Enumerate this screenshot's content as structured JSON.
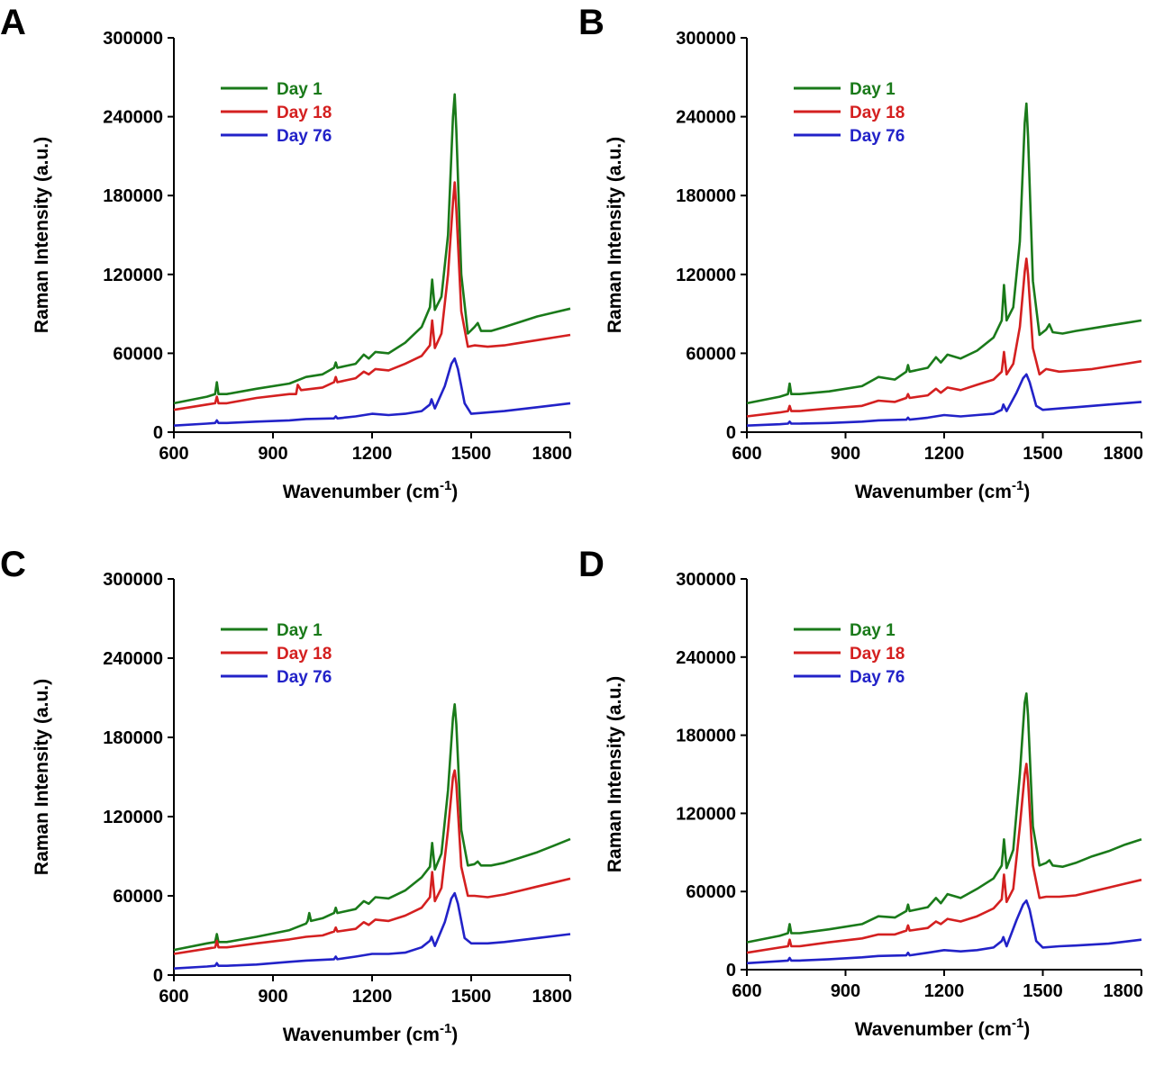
{
  "chart_data": [
    {
      "type": "line",
      "panel": "A",
      "xlabel": "Wavenumber (cm",
      "xlabel_sup": "-1",
      "ylabel": "Raman Intensity (a.u.)",
      "xlim": [
        600,
        1800
      ],
      "ylim": [
        0,
        300000
      ],
      "xticks": [
        "600",
        "900",
        "1200",
        "1500",
        "1800"
      ],
      "yticks": [
        "0",
        "60000",
        "120000",
        "180000",
        "240000",
        "300000"
      ],
      "legend_position": "top-left",
      "grid": false,
      "series": [
        {
          "name": "Day 1",
          "color": "#1a7a1a",
          "x": [
            600,
            700,
            725,
            730,
            735,
            760,
            850,
            950,
            1000,
            1050,
            1085,
            1090,
            1095,
            1150,
            1175,
            1190,
            1210,
            1250,
            1300,
            1350,
            1375,
            1382,
            1390,
            1410,
            1430,
            1445,
            1450,
            1455,
            1470,
            1490,
            1510,
            1520,
            1530,
            1560,
            1600,
            1650,
            1700,
            1750,
            1800
          ],
          "y": [
            22000,
            27000,
            29000,
            38000,
            29000,
            29000,
            33000,
            37000,
            42000,
            44000,
            49000,
            53000,
            49000,
            52000,
            59000,
            56000,
            61000,
            60000,
            68000,
            80000,
            95000,
            116000,
            93000,
            103000,
            150000,
            240000,
            257000,
            230000,
            120000,
            75000,
            80000,
            83000,
            77000,
            77000,
            80000,
            84000,
            88000,
            91000,
            94000
          ]
        },
        {
          "name": "Day 18",
          "color": "#d42020",
          "x": [
            600,
            700,
            725,
            730,
            735,
            760,
            850,
            950,
            970,
            975,
            985,
            1050,
            1085,
            1090,
            1095,
            1150,
            1175,
            1190,
            1210,
            1250,
            1300,
            1350,
            1375,
            1382,
            1390,
            1410,
            1430,
            1445,
            1450,
            1455,
            1470,
            1490,
            1510,
            1550,
            1600,
            1650,
            1700,
            1750,
            1800
          ],
          "y": [
            17000,
            21000,
            22000,
            27000,
            22000,
            22000,
            26000,
            29000,
            29000,
            36000,
            32000,
            34000,
            38000,
            42000,
            38000,
            41000,
            46000,
            44000,
            48000,
            47000,
            52000,
            58000,
            66000,
            85000,
            64000,
            75000,
            120000,
            175000,
            190000,
            170000,
            92000,
            65000,
            66000,
            65000,
            66000,
            68000,
            70000,
            72000,
            74000
          ]
        },
        {
          "name": "Day 76",
          "color": "#2222c8",
          "x": [
            600,
            700,
            725,
            730,
            735,
            760,
            850,
            950,
            1000,
            1085,
            1090,
            1095,
            1150,
            1200,
            1250,
            1300,
            1350,
            1375,
            1380,
            1390,
            1420,
            1440,
            1450,
            1460,
            1480,
            1500,
            1550,
            1600,
            1700,
            1800
          ],
          "y": [
            5000,
            6500,
            7000,
            9000,
            7000,
            7000,
            8000,
            9000,
            10000,
            10500,
            12000,
            10500,
            12000,
            14000,
            13000,
            14000,
            16000,
            21000,
            25000,
            18000,
            35000,
            52000,
            56000,
            48000,
            22000,
            14000,
            15000,
            16000,
            19000,
            22000
          ]
        }
      ]
    },
    {
      "type": "line",
      "panel": "B",
      "xlabel": "Wavenumber (cm",
      "xlabel_sup": "-1",
      "ylabel": "Raman Intensity (a.u.)",
      "xlim": [
        600,
        1800
      ],
      "ylim": [
        0,
        300000
      ],
      "xticks": [
        "600",
        "900",
        "1200",
        "1500",
        "1800"
      ],
      "yticks": [
        "0",
        "60000",
        "120000",
        "180000",
        "240000",
        "300000"
      ],
      "legend_position": "top-left",
      "grid": false,
      "series": [
        {
          "name": "Day 1",
          "color": "#1a7a1a",
          "x": [
            600,
            700,
            725,
            730,
            735,
            760,
            850,
            950,
            1000,
            1050,
            1085,
            1090,
            1095,
            1150,
            1175,
            1190,
            1210,
            1250,
            1300,
            1350,
            1375,
            1382,
            1390,
            1410,
            1430,
            1445,
            1450,
            1455,
            1470,
            1490,
            1510,
            1520,
            1530,
            1560,
            1600,
            1650,
            1700,
            1750,
            1800
          ],
          "y": [
            22000,
            27000,
            29000,
            37000,
            29000,
            29000,
            31000,
            35000,
            42000,
            40000,
            46000,
            51000,
            46000,
            49000,
            57000,
            53000,
            59000,
            56000,
            62000,
            72000,
            85000,
            112000,
            85000,
            95000,
            145000,
            235000,
            250000,
            225000,
            115000,
            74000,
            78000,
            82000,
            76000,
            75000,
            77000,
            79000,
            81000,
            83000,
            85000
          ]
        },
        {
          "name": "Day 18",
          "color": "#d42020",
          "x": [
            600,
            700,
            725,
            730,
            735,
            760,
            850,
            950,
            1000,
            1050,
            1085,
            1090,
            1095,
            1150,
            1175,
            1190,
            1210,
            1250,
            1300,
            1350,
            1375,
            1382,
            1390,
            1410,
            1430,
            1445,
            1450,
            1455,
            1470,
            1490,
            1510,
            1550,
            1600,
            1650,
            1700,
            1750,
            1800
          ],
          "y": [
            12000,
            15000,
            16000,
            20000,
            16000,
            16000,
            18000,
            20000,
            24000,
            23000,
            26000,
            29000,
            26000,
            28000,
            33000,
            30000,
            34000,
            32000,
            36000,
            40000,
            46000,
            61000,
            44000,
            52000,
            80000,
            122000,
            132000,
            120000,
            64000,
            44000,
            48000,
            46000,
            47000,
            48000,
            50000,
            52000,
            54000
          ]
        },
        {
          "name": "Day 76",
          "color": "#2222c8",
          "x": [
            600,
            700,
            725,
            730,
            735,
            760,
            850,
            950,
            1000,
            1085,
            1090,
            1095,
            1150,
            1200,
            1250,
            1300,
            1350,
            1375,
            1380,
            1390,
            1420,
            1440,
            1450,
            1460,
            1480,
            1500,
            1550,
            1600,
            1700,
            1800
          ],
          "y": [
            5000,
            6000,
            6500,
            8000,
            6500,
            6500,
            7000,
            8000,
            9000,
            9500,
            11000,
            9500,
            11000,
            13000,
            12000,
            13000,
            14000,
            17000,
            21000,
            16000,
            30000,
            41000,
            44000,
            38000,
            20000,
            17000,
            18000,
            19000,
            21000,
            23000
          ]
        }
      ]
    },
    {
      "type": "line",
      "panel": "C",
      "xlabel": "Wavenumber (cm",
      "xlabel_sup": "-1",
      "ylabel": "Raman Intensity (a.u.)",
      "xlim": [
        600,
        1800
      ],
      "ylim": [
        0,
        300000
      ],
      "xticks": [
        "600",
        "900",
        "1200",
        "1500",
        "1800"
      ],
      "yticks": [
        "0",
        "60000",
        "120000",
        "180000",
        "240000",
        "300000"
      ],
      "legend_position": "top-left",
      "grid": false,
      "series": [
        {
          "name": "Day 1",
          "color": "#1a7a1a",
          "x": [
            600,
            700,
            725,
            730,
            735,
            760,
            850,
            950,
            1000,
            1005,
            1010,
            1015,
            1050,
            1085,
            1090,
            1095,
            1150,
            1175,
            1190,
            1210,
            1250,
            1300,
            1350,
            1375,
            1382,
            1390,
            1410,
            1430,
            1445,
            1450,
            1455,
            1470,
            1490,
            1510,
            1520,
            1530,
            1560,
            1600,
            1650,
            1700,
            1750,
            1800
          ],
          "y": [
            19000,
            24000,
            25000,
            31000,
            25000,
            25000,
            29000,
            34000,
            39000,
            41000,
            47000,
            41000,
            43000,
            47000,
            51000,
            47000,
            50000,
            56000,
            54000,
            59000,
            58000,
            64000,
            74000,
            82000,
            100000,
            80000,
            92000,
            140000,
            195000,
            205000,
            190000,
            110000,
            83000,
            84000,
            86000,
            83000,
            83000,
            85000,
            89000,
            93000,
            98000,
            103000
          ]
        },
        {
          "name": "Day 18",
          "color": "#d42020",
          "x": [
            600,
            700,
            725,
            730,
            735,
            760,
            850,
            950,
            1000,
            1050,
            1085,
            1090,
            1095,
            1150,
            1175,
            1190,
            1210,
            1250,
            1300,
            1350,
            1375,
            1382,
            1390,
            1410,
            1430,
            1445,
            1450,
            1455,
            1470,
            1490,
            1510,
            1550,
            1600,
            1650,
            1700,
            1750,
            1800
          ],
          "y": [
            16000,
            20000,
            21000,
            26000,
            21000,
            21000,
            24000,
            27000,
            29000,
            30000,
            33000,
            36000,
            33000,
            35000,
            40000,
            38000,
            42000,
            41000,
            45000,
            51000,
            59000,
            78000,
            56000,
            66000,
            110000,
            150000,
            155000,
            145000,
            82000,
            60000,
            60000,
            59000,
            61000,
            64000,
            67000,
            70000,
            73000
          ]
        },
        {
          "name": "Day 76",
          "color": "#2222c8",
          "x": [
            600,
            700,
            725,
            730,
            735,
            760,
            850,
            950,
            1000,
            1085,
            1090,
            1095,
            1150,
            1200,
            1250,
            1300,
            1350,
            1375,
            1380,
            1390,
            1420,
            1440,
            1450,
            1460,
            1480,
            1500,
            1550,
            1600,
            1700,
            1800
          ],
          "y": [
            5000,
            6500,
            7000,
            9000,
            7000,
            7000,
            8000,
            10000,
            11000,
            12000,
            14000,
            12000,
            14000,
            16000,
            16000,
            17000,
            21000,
            26000,
            29000,
            22000,
            40000,
            58000,
            62000,
            54000,
            28000,
            24000,
            24000,
            25000,
            28000,
            31000
          ]
        }
      ]
    },
    {
      "type": "line",
      "panel": "D",
      "xlabel": "Wavenumber (cm",
      "xlabel_sup": "-1",
      "ylabel": "Raman Intensity (a.u.)",
      "xlim": [
        600,
        1800
      ],
      "ylim": [
        0,
        300000
      ],
      "xticks": [
        "600",
        "900",
        "1200",
        "1500",
        "1800"
      ],
      "yticks": [
        "0",
        "60000",
        "120000",
        "180000",
        "240000",
        "300000"
      ],
      "legend_position": "top-left",
      "grid": false,
      "series": [
        {
          "name": "Day 1",
          "color": "#1a7a1a",
          "x": [
            600,
            700,
            725,
            730,
            735,
            760,
            850,
            950,
            1000,
            1050,
            1085,
            1090,
            1095,
            1150,
            1175,
            1190,
            1210,
            1250,
            1300,
            1350,
            1375,
            1382,
            1390,
            1410,
            1430,
            1445,
            1450,
            1455,
            1470,
            1490,
            1510,
            1520,
            1530,
            1560,
            1600,
            1650,
            1700,
            1750,
            1800
          ],
          "y": [
            21000,
            26000,
            28000,
            35000,
            28000,
            28000,
            31000,
            35000,
            41000,
            40000,
            45000,
            50000,
            45000,
            48000,
            55000,
            51000,
            58000,
            55000,
            62000,
            70000,
            80000,
            100000,
            78000,
            92000,
            150000,
            205000,
            212000,
            195000,
            110000,
            80000,
            82000,
            84000,
            80000,
            79000,
            82000,
            87000,
            91000,
            96000,
            100000
          ]
        },
        {
          "name": "Day 18",
          "color": "#d42020",
          "x": [
            600,
            700,
            725,
            730,
            735,
            760,
            850,
            950,
            1000,
            1050,
            1085,
            1090,
            1095,
            1150,
            1175,
            1190,
            1210,
            1250,
            1300,
            1350,
            1375,
            1382,
            1390,
            1410,
            1430,
            1445,
            1450,
            1455,
            1470,
            1490,
            1510,
            1550,
            1600,
            1650,
            1700,
            1750,
            1800
          ],
          "y": [
            13000,
            17000,
            18000,
            23000,
            18000,
            18000,
            21000,
            24000,
            27000,
            27000,
            30000,
            34000,
            30000,
            32000,
            37000,
            35000,
            39000,
            37000,
            41000,
            47000,
            54000,
            73000,
            52000,
            62000,
            110000,
            150000,
            158000,
            145000,
            80000,
            55000,
            56000,
            56000,
            57000,
            60000,
            63000,
            66000,
            69000
          ]
        },
        {
          "name": "Day 76",
          "color": "#2222c8",
          "x": [
            600,
            700,
            725,
            730,
            735,
            760,
            850,
            950,
            1000,
            1085,
            1090,
            1095,
            1150,
            1200,
            1250,
            1300,
            1350,
            1375,
            1380,
            1390,
            1420,
            1440,
            1450,
            1460,
            1480,
            1500,
            1550,
            1600,
            1700,
            1800
          ],
          "y": [
            5000,
            6500,
            7000,
            9000,
            7000,
            7000,
            8000,
            9500,
            10500,
            11000,
            13000,
            11000,
            13000,
            15000,
            14000,
            15000,
            17000,
            22000,
            25000,
            18000,
            38000,
            50000,
            53000,
            46000,
            22000,
            17000,
            18000,
            18500,
            20000,
            23000
          ]
        }
      ]
    }
  ]
}
